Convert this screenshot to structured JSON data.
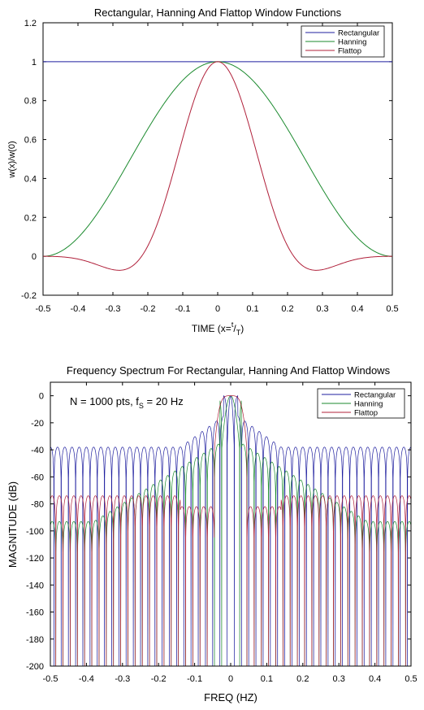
{
  "chart_data": [
    {
      "type": "line",
      "title": "Rectangular, Hanning And Flattop Window Functions",
      "xlabel": "TIME (x=",
      "xlabel_sup": "t",
      "xlabel_slash": "/",
      "xlabel_sub": "T",
      "xlabel_end": ")",
      "ylabel": "w(x)/w(0)",
      "xlim": [
        -0.5,
        0.5
      ],
      "ylim": [
        -0.2,
        1.2
      ],
      "xticks": [
        "-0.5",
        "-0.4",
        "-0.3",
        "-0.2",
        "-0.1",
        "0",
        "0.1",
        "0.2",
        "0.3",
        "0.4",
        "0.5"
      ],
      "yticks": [
        "-0.2",
        "0",
        "0.2",
        "0.4",
        "0.6",
        "0.8",
        "1",
        "1.2"
      ],
      "legend": {
        "placement": "top-right",
        "entries": [
          "Rectangular",
          "Hanning",
          "Flattop"
        ]
      },
      "series": [
        {
          "name": "Rectangular",
          "color": "#1f1f9f",
          "function": "1"
        },
        {
          "name": "Hanning",
          "color": "#1b8a2e",
          "function": "0.5 + 0.5cos(2πx)"
        },
        {
          "name": "Flattop",
          "color": "#b0203a",
          "function": "(1 + 1.93cos(2πx) + 1.29cos(4πx) + 0.388cos(6πx) + 0.028cos(8πx)) / 4.636"
        }
      ]
    },
    {
      "type": "line",
      "title": "Frequency Spectrum For Rectangular, Hanning And Flattop Windows",
      "annotation_main": "N = 1000 pts, f",
      "annotation_sub": "S",
      "annotation_end": " = 20 Hz",
      "xlabel": "FREQ (HZ)",
      "ylabel": "MAGNITUDE (dB)",
      "xlim": [
        -0.5,
        0.5
      ],
      "ylim": [
        -200,
        10
      ],
      "xticks": [
        "-0.5",
        "-0.4",
        "-0.3",
        "-0.2",
        "-0.1",
        "0",
        "0.1",
        "0.2",
        "0.3",
        "0.4",
        "0.5"
      ],
      "yticks": [
        "0",
        "-20",
        "-40",
        "-60",
        "-80",
        "-100",
        "-120",
        "-140",
        "-160",
        "-180",
        "-200"
      ],
      "legend": {
        "placement": "top-right",
        "entries": [
          "Rectangular",
          "Hanning",
          "Flattop"
        ]
      },
      "lobe_spacing_hz": 0.02,
      "series": [
        {
          "name": "Rectangular",
          "color": "#1f1f9f",
          "peak_db": 0,
          "sidelobe_db_near": -15,
          "sidelobe_db_edge": -38
        },
        {
          "name": "Hanning",
          "color": "#1b8a2e",
          "peak_db": 0,
          "sidelobe_db_near": -35,
          "sidelobe_db_edge": -92
        },
        {
          "name": "Flattop",
          "color": "#b0203a",
          "peak_db": 0,
          "sidelobe_db_near": -82,
          "sidelobe_db_edge": -74
        }
      ]
    }
  ]
}
